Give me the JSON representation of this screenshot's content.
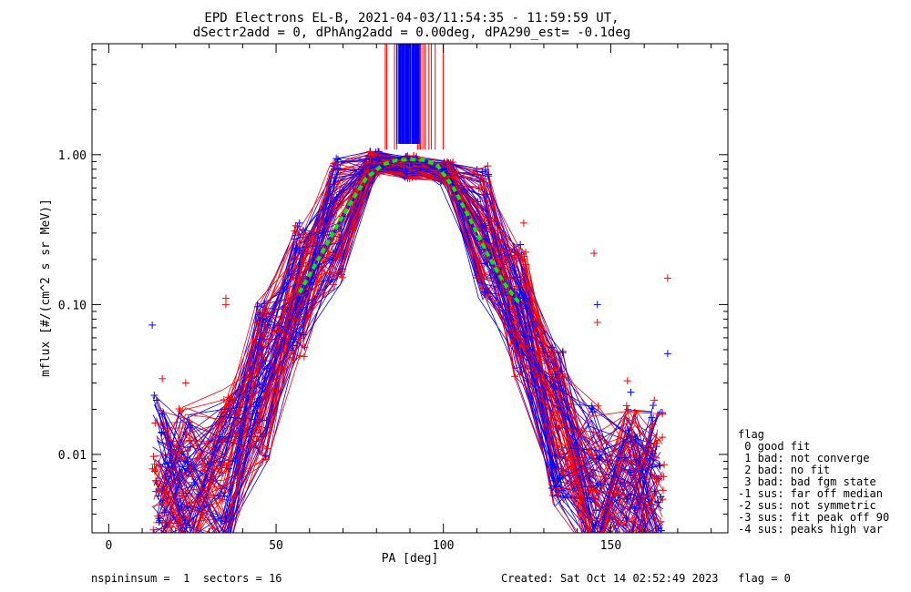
{
  "chart_data": {
    "type": "scatter",
    "title": "EPD Electrons EL-B, 2021-04-03/11:54:35 - 11:59:59 UT,",
    "subtitle": "dSectr2add = 0, dPhAng2add = 0.00deg, dPA290_est=  -0.1deg",
    "xlabel": "PA [deg]",
    "ylabel": "mflux [#/(cm^2 s sr MeV)]",
    "xlim": [
      -5,
      185
    ],
    "ylim": [
      0.003,
      5.5
    ],
    "yscale": "log",
    "xticks": [
      "0",
      "50",
      "100",
      "150"
    ],
    "xtick_values": [
      0,
      50,
      100,
      150
    ],
    "yticks": [
      "0.01",
      "0.10",
      "1.00"
    ],
    "ytick_values": [
      0.01,
      0.1,
      1.0
    ],
    "grid": false,
    "legend_placement": "right",
    "colors": {
      "spin_a": "#ff0000",
      "spin_b": "#0000ff",
      "fit": "#00ee00",
      "axes": "#000000"
    },
    "series_profile": {
      "pa": [
        15,
        23,
        35,
        46,
        57,
        68,
        79,
        90,
        101,
        112,
        123,
        134,
        145,
        156,
        164
      ],
      "flux": [
        0.007,
        0.006,
        0.008,
        0.03,
        0.12,
        0.35,
        0.88,
        0.82,
        0.75,
        0.3,
        0.09,
        0.015,
        0.006,
        0.006,
        0.006
      ]
    },
    "fit_curve": {
      "pa": [
        57,
        62,
        67,
        72,
        77,
        82,
        86,
        90,
        94,
        98,
        103,
        108,
        113,
        118,
        123
      ],
      "flux": [
        0.12,
        0.19,
        0.3,
        0.47,
        0.7,
        0.86,
        0.92,
        0.93,
        0.92,
        0.86,
        0.6,
        0.37,
        0.22,
        0.14,
        0.1
      ]
    },
    "outliers": [
      {
        "pa": 13,
        "flux": 0.073
      },
      {
        "pa": 35,
        "flux": 0.11
      },
      {
        "pa": 35,
        "flux": 0.1
      },
      {
        "pa": 57,
        "flux": 0.35
      },
      {
        "pa": 124,
        "flux": 0.35
      },
      {
        "pa": 145,
        "flux": 0.22
      },
      {
        "pa": 146,
        "flux": 0.1
      },
      {
        "pa": 146,
        "flux": 0.076
      },
      {
        "pa": 167,
        "flux": 0.15
      },
      {
        "pa": 167,
        "flux": 0.047
      },
      {
        "pa": 163,
        "flux": 0.023
      },
      {
        "pa": 155,
        "flux": 0.031
      },
      {
        "pa": 156,
        "flux": 0.026
      },
      {
        "pa": 16,
        "flux": 0.032
      },
      {
        "pa": 23,
        "flux": 0.03
      }
    ],
    "saturation_pa_range": [
      79,
      100
    ],
    "saturation_dense_pa_range": [
      86,
      93
    ]
  },
  "legend": {
    "title": "flag",
    "items": [
      " 0 good fit",
      " 1 bad: not converge",
      " 2 bad: no fit",
      " 3 bad: bad fgm state",
      "-1 sus: far off median",
      "-2 sus: not symmetric",
      "-3 sus: fit peak off 90",
      "-4 sus: peaks high var"
    ]
  },
  "footer": {
    "left": "nspininsum =  1  sectors = 16",
    "right": "Created: Sat Oct 14 02:52:49 2023   flag = 0"
  }
}
